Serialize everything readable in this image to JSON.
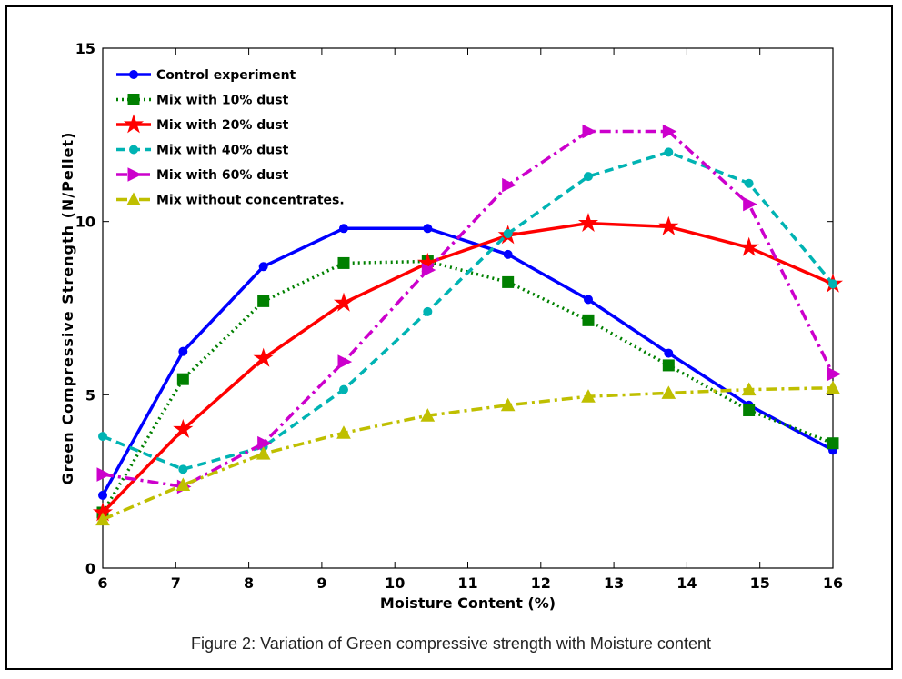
{
  "chart_data": {
    "type": "line",
    "xlabel": "Moisture Content (%)",
    "ylabel": "Green Compressive Strength (N/Pellet)",
    "xlim": [
      6,
      16
    ],
    "ylim": [
      0,
      15
    ],
    "xticks": [
      6,
      7,
      8,
      9,
      10,
      11,
      12,
      13,
      14,
      15,
      16
    ],
    "yticks": [
      0,
      5,
      10,
      15
    ],
    "grid": false,
    "legend_position": "top-left",
    "x": [
      6,
      7.1,
      8.2,
      9.3,
      10.45,
      11.55,
      12.65,
      13.75,
      14.85,
      16
    ],
    "series": [
      {
        "name": "Control experiment",
        "color": "#0000ff",
        "dash": "solid",
        "marker": "circle",
        "values": [
          2.1,
          6.25,
          8.7,
          9.8,
          9.8,
          9.05,
          7.75,
          6.2,
          4.7,
          3.4
        ]
      },
      {
        "name": "Mix with 10% dust",
        "color": "#008000",
        "dash": "dotted",
        "marker": "square",
        "values": [
          1.6,
          5.45,
          7.7,
          8.8,
          8.85,
          8.25,
          7.15,
          5.85,
          4.55,
          3.6
        ]
      },
      {
        "name": "Mix with 20% dust",
        "color": "#ff0000",
        "dash": "solid",
        "marker": "star",
        "values": [
          1.6,
          4.0,
          6.05,
          7.65,
          8.8,
          9.6,
          9.95,
          9.85,
          9.25,
          8.2
        ]
      },
      {
        "name": "Mix with 40% dust",
        "color": "#00b3b3",
        "dash": "dashed",
        "marker": "circle",
        "values": [
          3.8,
          2.85,
          3.5,
          5.15,
          7.4,
          9.65,
          11.3,
          12.0,
          11.1,
          8.2
        ]
      },
      {
        "name": "Mix with 60% dust",
        "color": "#cc00cc",
        "dash": "dashdot",
        "marker": "triangle-right",
        "values": [
          2.7,
          2.35,
          3.6,
          5.95,
          8.6,
          11.05,
          12.6,
          12.6,
          10.5,
          5.6
        ]
      },
      {
        "name": "Mix without concentrates.",
        "color": "#bfbf00",
        "dash": "dashdot",
        "marker": "triangle-up",
        "values": [
          1.4,
          2.4,
          3.3,
          3.9,
          4.4,
          4.7,
          4.95,
          5.05,
          5.15,
          5.2
        ]
      }
    ]
  },
  "caption": "Figure 2: Variation of Green compressive  strength with Moisture content"
}
